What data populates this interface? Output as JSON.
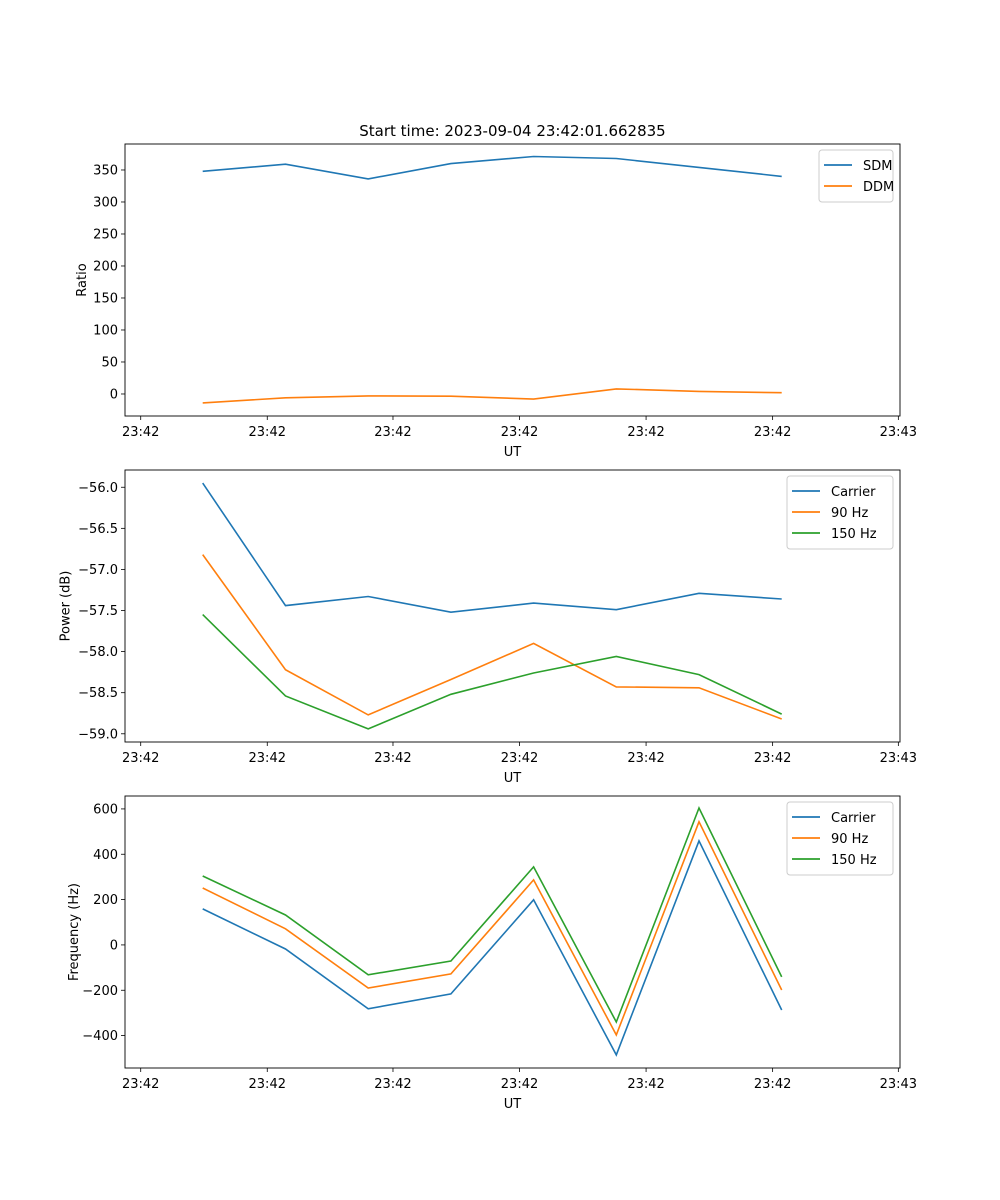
{
  "chart_data": [
    {
      "type": "line",
      "title": "Start time: 2023-09-04 23:42:01.662835",
      "xlabel": "UT",
      "ylabel": "Ratio",
      "x": [
        0,
        1,
        2,
        3,
        4,
        5,
        6,
        7
      ],
      "xlim": [
        -0.94,
        8.43
      ],
      "xticks": [
        -0.75,
        0.78,
        2.3,
        3.83,
        5.36,
        6.89,
        8.41
      ],
      "xtick_labels": [
        "23:42",
        "23:42",
        "23:42",
        "23:42",
        "23:42",
        "23:42",
        "23:43"
      ],
      "ylim": [
        -34.4,
        390.6
      ],
      "yticks": [
        0,
        50,
        100,
        150,
        200,
        250,
        300,
        350
      ],
      "ytick_labels": [
        "0",
        "50",
        "100",
        "150",
        "200",
        "250",
        "300",
        "350"
      ],
      "legend": "top-right",
      "series": [
        {
          "name": "SDM",
          "color": "#1f77b4",
          "values": [
            348,
            359,
            336,
            360,
            371,
            368,
            354,
            340
          ]
        },
        {
          "name": "DDM",
          "color": "#ff7f0e",
          "values": [
            -14,
            -6,
            -3,
            -3.5,
            -8,
            8,
            4,
            2
          ]
        }
      ]
    },
    {
      "type": "line",
      "xlabel": "UT",
      "ylabel": "Power (dB)",
      "x": [
        0,
        1,
        2,
        3,
        4,
        5,
        6,
        7
      ],
      "xlim": [
        -0.94,
        8.43
      ],
      "xticks": [
        -0.75,
        0.78,
        2.3,
        3.83,
        5.36,
        6.89,
        8.41
      ],
      "xtick_labels": [
        "23:42",
        "23:42",
        "23:42",
        "23:42",
        "23:42",
        "23:42",
        "23:43"
      ],
      "ylim": [
        -59.1,
        -55.79
      ],
      "yticks": [
        -59.0,
        -58.5,
        -58.0,
        -57.5,
        -57.0,
        -56.5,
        -56.0
      ],
      "ytick_labels": [
        "−59.0",
        "−58.5",
        "−58.0",
        "−57.5",
        "−57.0",
        "−56.5",
        "−56.0"
      ],
      "legend": "top-right",
      "series": [
        {
          "name": "Carrier",
          "color": "#1f77b4",
          "values": [
            -55.95,
            -57.44,
            -57.33,
            -57.52,
            -57.41,
            -57.49,
            -57.29,
            -57.36
          ]
        },
        {
          "name": "90 Hz",
          "color": "#ff7f0e",
          "values": [
            -56.82,
            -58.22,
            -58.77,
            -58.34,
            -57.9,
            -58.43,
            -58.44,
            -58.82
          ]
        },
        {
          "name": "150 Hz",
          "color": "#2ca02c",
          "values": [
            -57.55,
            -58.54,
            -58.94,
            -58.52,
            -58.26,
            -58.06,
            -58.28,
            -58.76
          ]
        }
      ]
    },
    {
      "type": "line",
      "xlabel": "UT",
      "ylabel": "Frequency (Hz)",
      "x": [
        0,
        1,
        2,
        3,
        4,
        5,
        6,
        7
      ],
      "xlim": [
        -0.94,
        8.43
      ],
      "xticks": [
        -0.75,
        0.78,
        2.3,
        3.83,
        5.36,
        6.89,
        8.41
      ],
      "xtick_labels": [
        "23:42",
        "23:42",
        "23:42",
        "23:42",
        "23:42",
        "23:42",
        "23:43"
      ],
      "ylim": [
        -543,
        657
      ],
      "yticks": [
        -400,
        -200,
        0,
        200,
        400,
        600
      ],
      "ytick_labels": [
        "−400",
        "−200",
        "0",
        "200",
        "400",
        "600"
      ],
      "legend": "top-right",
      "series": [
        {
          "name": "Carrier",
          "color": "#1f77b4",
          "values": [
            159,
            -18,
            -282,
            -216,
            199,
            -485,
            459,
            -287
          ]
        },
        {
          "name": "90 Hz",
          "color": "#ff7f0e",
          "values": [
            251,
            71,
            -190,
            -128,
            287,
            -397,
            543,
            -199
          ]
        },
        {
          "name": "150 Hz",
          "color": "#2ca02c",
          "values": [
            304,
            132,
            -132,
            -71,
            344,
            -340,
            604,
            -141
          ]
        }
      ]
    }
  ]
}
